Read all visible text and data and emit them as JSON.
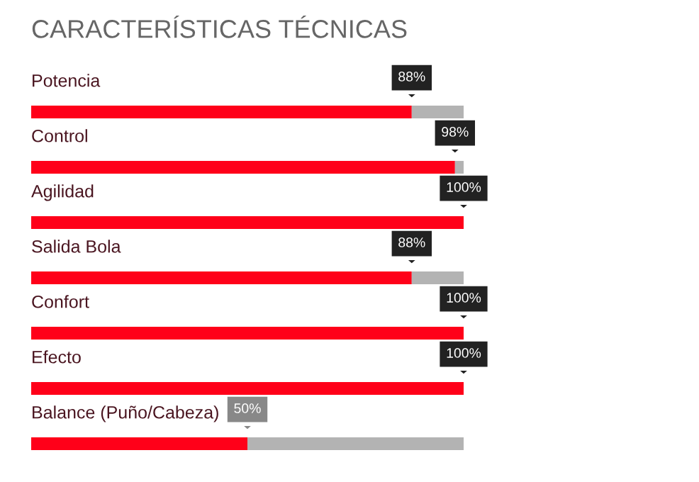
{
  "chart_data": {
    "type": "bar",
    "orientation": "horizontal",
    "stacked": true,
    "xlim": [
      0,
      100
    ],
    "tick_labels": false,
    "title": "CARACTERÍSTICAS TÉCNICAS",
    "categories": [
      "Potencia",
      "Control",
      "Agilidad",
      "Salida Bola",
      "Confort",
      "Efecto",
      "Balance (Puño/Cabeza)"
    ],
    "series": [
      {
        "color": "#ff0019",
        "values": [
          88,
          98,
          100,
          88,
          100,
          100,
          50
        ],
        "value_labels": [
          "88%",
          "98%",
          "100%",
          "88%",
          "100%",
          "100%",
          "50%"
        ]
      },
      {
        "color": "#b3b3b3",
        "values": [
          12,
          2,
          0,
          12,
          0,
          0,
          50
        ]
      }
    ]
  }
}
